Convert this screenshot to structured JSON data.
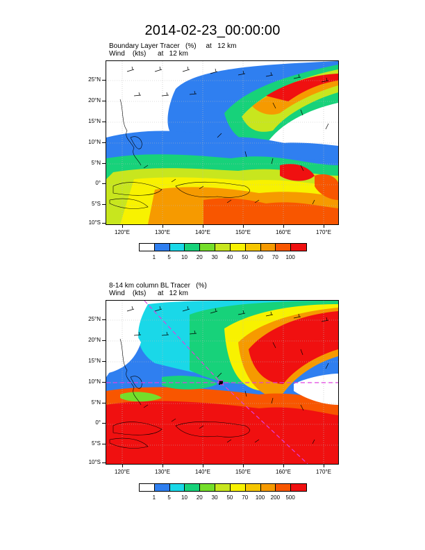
{
  "title": "2014-02-23_00:00:00",
  "colors": {
    "land_outline": "#000000",
    "grid": "#bbbbbb",
    "marker": "#e040e0"
  },
  "panels": [
    {
      "id": "top",
      "title_line1": "Boundary Layer Tracer   (%)     at   12 km",
      "title_line2": "Wind    (kts)      at   12 km",
      "lat_labels": [
        "25°N",
        "20°N",
        "15°N",
        "10°N",
        "5°N",
        "0°",
        "5°S",
        "10°S"
      ],
      "lon_labels": [
        "120°E",
        "130°E",
        "140°E",
        "150°E",
        "160°E",
        "170°E"
      ],
      "colorbar_labels": [
        "1",
        "5",
        "10",
        "20",
        "30",
        "40",
        "50",
        "60",
        "70",
        "100"
      ],
      "colorbar_colors": [
        "#ffffff",
        "#2f7ff0",
        "#1ad8e8",
        "#17d27a",
        "#74de2a",
        "#c8e61e",
        "#f8f200",
        "#f6c600",
        "#f69a00",
        "#f85600",
        "#f01010"
      ]
    },
    {
      "id": "bottom",
      "title_line1": "8-14 km column BL Tracer   (%)",
      "title_line2": "Wind    (kts)      at   12 km",
      "lat_labels": [
        "25°N",
        "20°N",
        "15°N",
        "10°N",
        "5°N",
        "0°",
        "5°S",
        "10°S"
      ],
      "lon_labels": [
        "120°E",
        "130°E",
        "140°E",
        "150°E",
        "160°E",
        "170°E"
      ],
      "colorbar_labels": [
        "1",
        "5",
        "10",
        "20",
        "30",
        "50",
        "70",
        "100",
        "200",
        "500"
      ],
      "colorbar_colors": [
        "#ffffff",
        "#2f7ff0",
        "#1ad8e8",
        "#17d27a",
        "#74de2a",
        "#c8e61e",
        "#f8f200",
        "#f6c600",
        "#f69a00",
        "#f85600",
        "#f01010"
      ]
    }
  ]
}
